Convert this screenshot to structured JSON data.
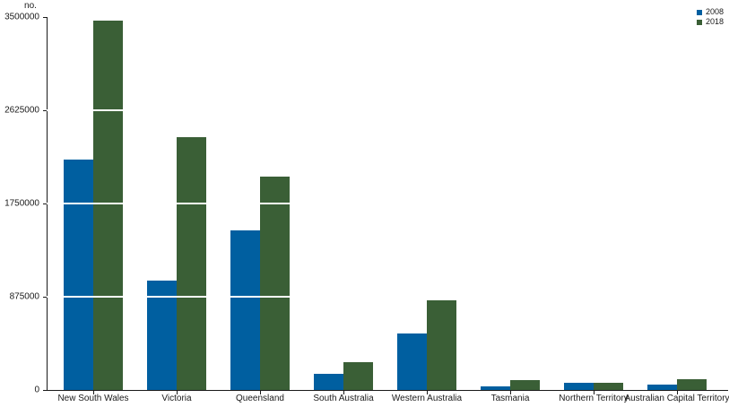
{
  "chart_data": {
    "type": "bar",
    "title": "",
    "unit_label": "no.",
    "xlabel": "",
    "ylabel": "no.",
    "categories": [
      "New South Wales",
      "Victoria",
      "Queensland",
      "South Australia",
      "Western Australia",
      "Tasmania",
      "Northern Territory",
      "Australian Capital Territory"
    ],
    "series": [
      {
        "name": "2008",
        "color": "#005FA0",
        "values": [
          2160000,
          1030000,
          1500000,
          150000,
          530000,
          30000,
          70000,
          50000
        ]
      },
      {
        "name": "2018",
        "color": "#3A5F36",
        "values": [
          3470000,
          2370000,
          2000000,
          260000,
          840000,
          90000,
          65000,
          100000
        ]
      }
    ],
    "ylim": [
      0,
      3500000
    ],
    "yticks": [
      0,
      875000,
      1750000,
      2625000,
      3500000
    ],
    "ytick_labels": [
      "0",
      "875000",
      "1750000",
      "2625000",
      "3500000"
    ],
    "gridline_values": [
      875000,
      1750000,
      2625000
    ],
    "gridline_style": "white-lines-over-bars",
    "legend_position": "top-right",
    "axis_color": "#1A1A1A",
    "background_color": "#FFFFFF"
  }
}
